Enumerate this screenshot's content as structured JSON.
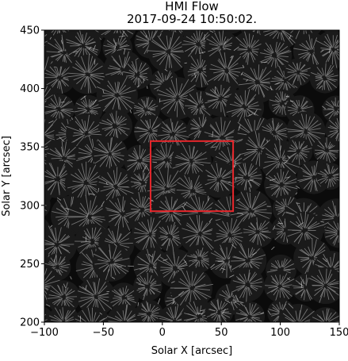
{
  "chart_data": {
    "type": "heatmap",
    "title": "HMI Flow",
    "subtitle": "2017-09-24 10:50:02.",
    "xlabel": "Solar X [arcsec]",
    "ylabel": "Solar Y [arcsec]",
    "xlim": [
      -100,
      150
    ],
    "ylim": [
      200,
      450
    ],
    "x_ticks": [
      -100,
      -50,
      0,
      50,
      100,
      150
    ],
    "x_tick_labels": [
      "−100",
      "−50",
      "0",
      "50",
      "100",
      "150"
    ],
    "y_ticks": [
      200,
      250,
      300,
      350,
      400,
      450
    ],
    "y_tick_labels": [
      "200",
      "250",
      "300",
      "350",
      "400",
      "450"
    ],
    "grid": false,
    "legend": "none",
    "image_colormap": "grayscale",
    "vector_field_color": "#7f7f7f",
    "highlight_box": {
      "x0": -10,
      "x1": 60,
      "y0": 295,
      "y1": 355,
      "color": "#e8262b"
    }
  }
}
